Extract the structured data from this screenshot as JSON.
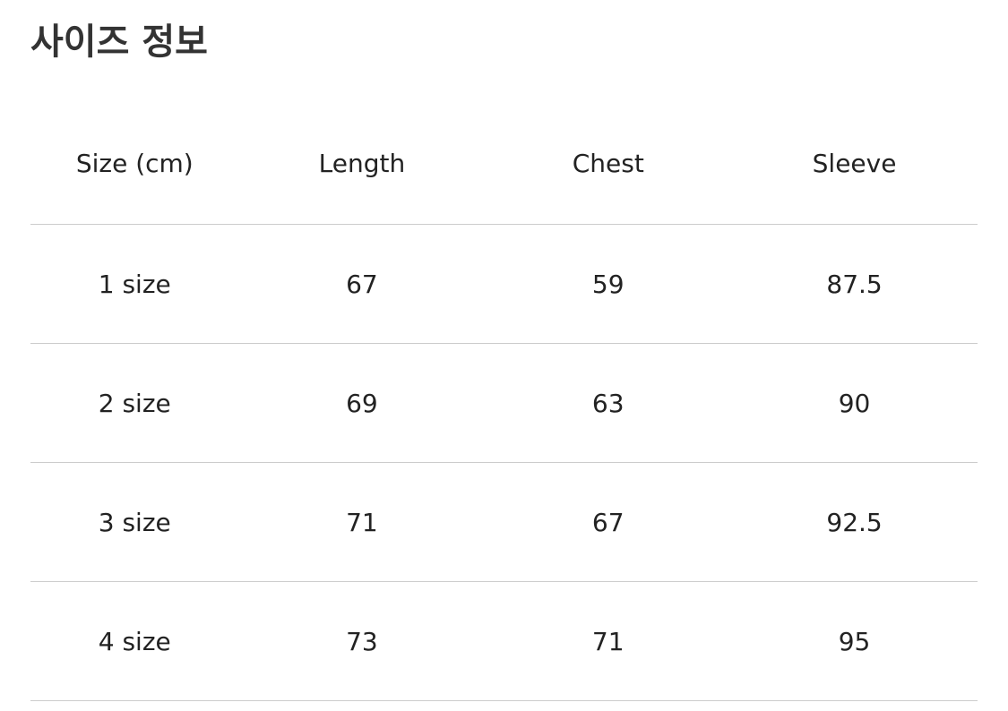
{
  "title": "사이즈 정보",
  "headers": [
    "Size (cm)",
    "Length",
    "Chest",
    "Sleeve"
  ],
  "rows": [
    [
      "1 size",
      "67",
      "59",
      "87.5"
    ],
    [
      "2 size",
      "69",
      "63",
      "90"
    ],
    [
      "3 size",
      "71",
      "67",
      "92.5"
    ],
    [
      "4 size",
      "73",
      "71",
      "95"
    ]
  ]
}
